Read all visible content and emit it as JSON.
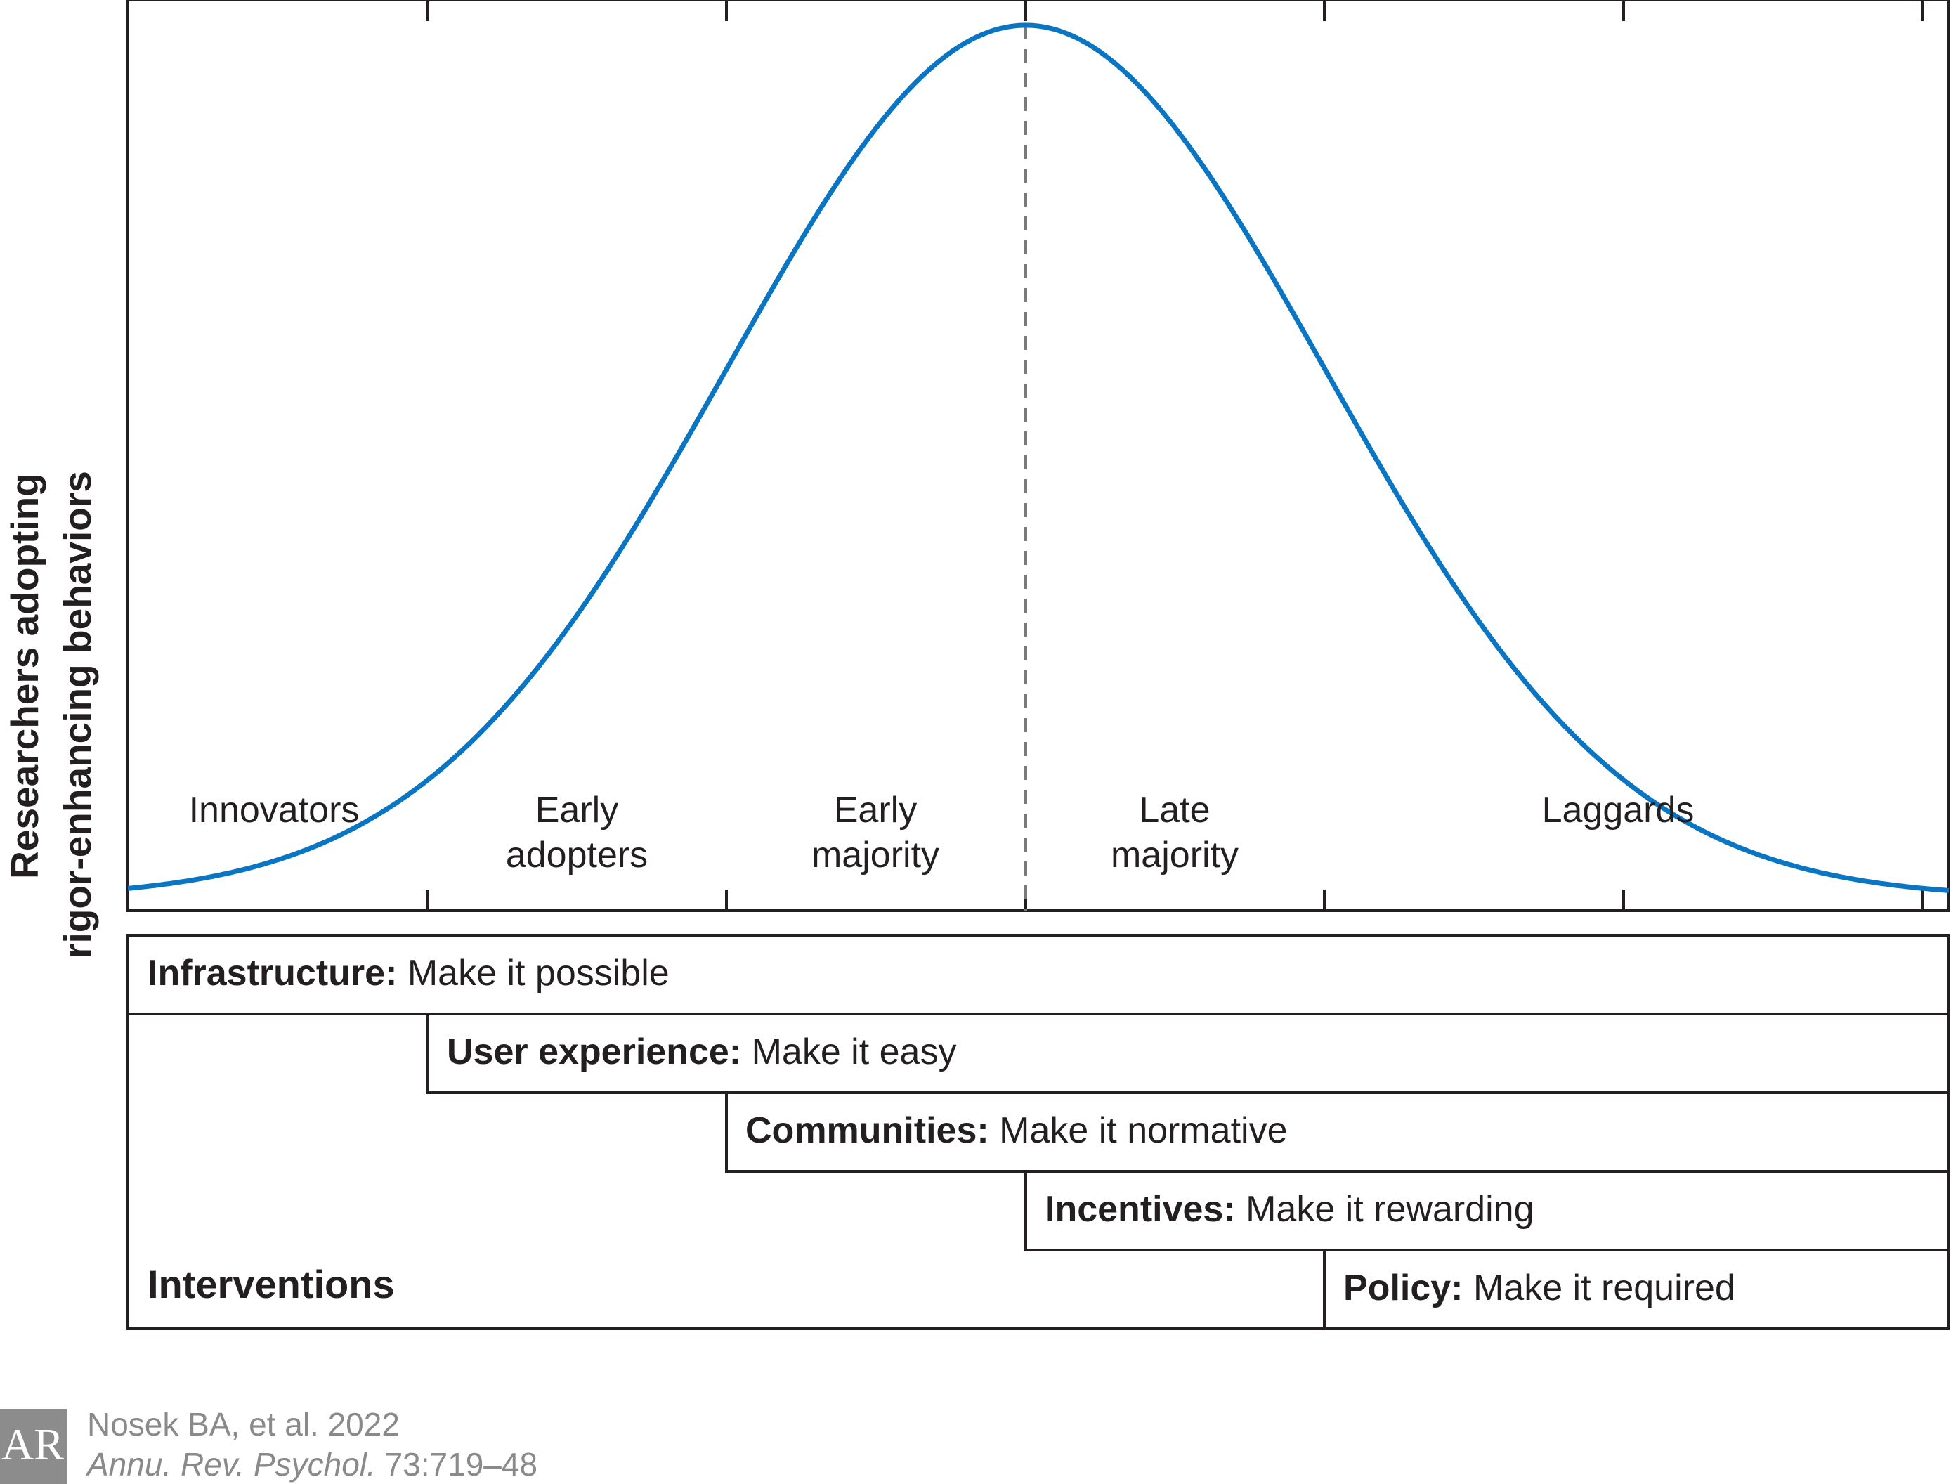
{
  "y_axis_label": [
    "Researchers adopting",
    "rigor-enhancing behaviors"
  ],
  "colors": {
    "curve": "#0a75c2",
    "ink": "#231f20",
    "citation": "#8a8a8a",
    "logo": "#8c8c8c"
  },
  "categories": [
    {
      "line1": "",
      "line2": "Innovators"
    },
    {
      "line1": "Early",
      "line2": "adopters"
    },
    {
      "line1": "Early",
      "line2": "majority"
    },
    {
      "line1": "Late",
      "line2": "majority"
    },
    {
      "line1": "",
      "line2": "Laggards"
    }
  ],
  "interventions": {
    "title": "Interventions",
    "rows": [
      {
        "name": "Infrastructure:",
        "desc": "Make it possible"
      },
      {
        "name": "User experience:",
        "desc": "Make it easy"
      },
      {
        "name": "Communities:",
        "desc": "Make it normative"
      },
      {
        "name": "Incentives:",
        "desc": "Make it rewarding"
      },
      {
        "name": "Policy:",
        "desc": "Make it required"
      }
    ]
  },
  "citation": {
    "line1": "Nosek BA, et al. 2022",
    "journal": "Annu. Rev. Psychol.",
    "pages": "73:719–48"
  },
  "logo_text": "AR"
}
